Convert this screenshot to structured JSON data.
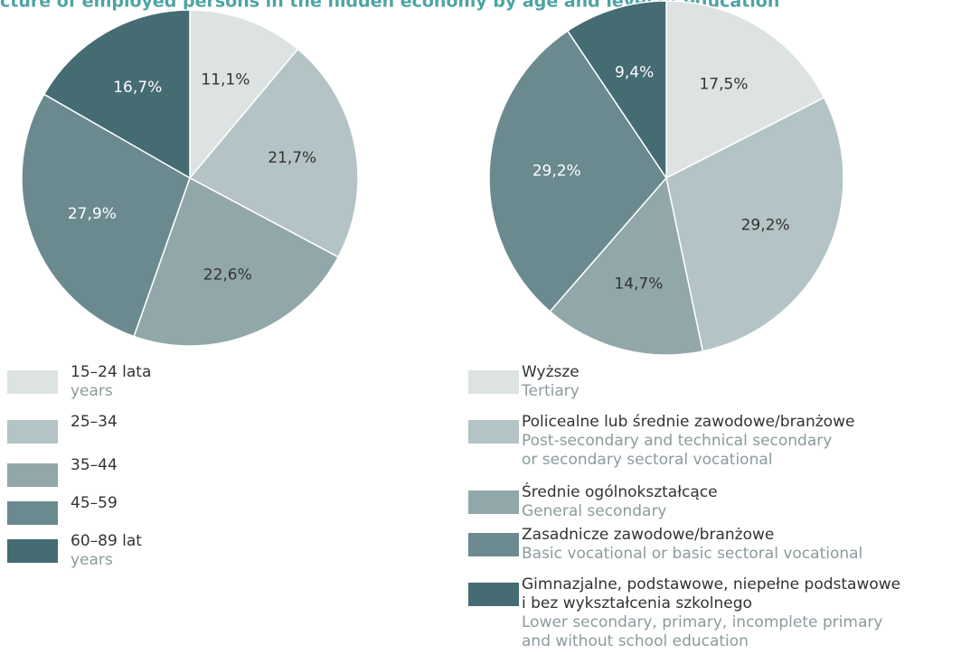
{
  "title": "cture of employed persons in the hidden economy by age and level of education",
  "chart_data": [
    {
      "type": "pie",
      "categories": [
        "15–24 lata",
        "25–34",
        "35–44",
        "45–59",
        "60–89 lat"
      ],
      "category_subtitles": [
        [
          "years"
        ],
        null,
        null,
        null,
        [
          "years"
        ]
      ],
      "values": [
        11.1,
        21.7,
        22.6,
        27.9,
        16.7
      ],
      "value_labels": [
        "11,1%",
        "21,7%",
        "22,6%",
        "27,9%",
        "16,7%"
      ],
      "colors": [
        "#dce3e2",
        "#b4c3c5",
        "#92a7a9",
        "#6b8a8f",
        "#456b73"
      ]
    },
    {
      "type": "pie",
      "categories": [
        "Wyższe",
        "Policealne lub średnie zawodowe/branżowe",
        "Średnie ogólnokształcące",
        "Zasadnicze zawodowe/branżowe",
        [
          "Gimnazjalne, podstawowe, niepełne podstawowe",
          "i bez wykształcenia szkolnego"
        ]
      ],
      "category_subtitles": [
        [
          "Tertiary"
        ],
        [
          "Post-secondary and technical secondary",
          "or secondary sectoral vocational"
        ],
        [
          "General  secondary"
        ],
        [
          "Basic vocational or basic sectoral vocational"
        ],
        [
          "Lower secondary, primary, incomplete primary",
          "and without school education"
        ]
      ],
      "values": [
        17.5,
        29.2,
        14.7,
        29.2,
        9.4
      ],
      "value_labels": [
        "17,5%",
        "29,2%",
        "14,7%",
        "29,2%",
        "9,4%"
      ],
      "colors": [
        "#dce3e2",
        "#b4c3c5",
        "#92a7a9",
        "#6b8a8f",
        "#456b73"
      ]
    }
  ]
}
